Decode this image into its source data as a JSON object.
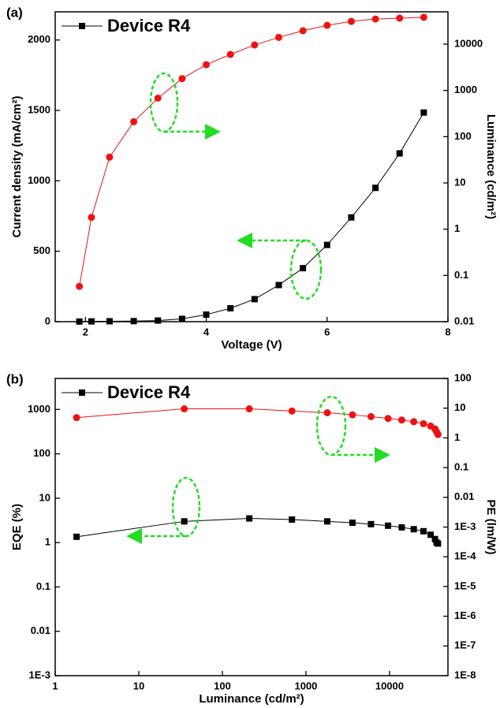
{
  "chart_data": [
    {
      "type": "line",
      "panel_label": "(a)",
      "xlabel": "Voltage (V)",
      "ylabel": "Current density (mA/cm²)",
      "y2label": "Luminance (cd/m²)",
      "x": [
        1.9,
        2.1,
        2.4,
        2.8,
        3.2,
        3.6,
        4.0,
        4.4,
        4.8,
        5.2,
        5.6,
        6.0,
        6.4,
        6.8,
        7.2,
        7.6
      ],
      "series": [
        {
          "name": "Device R4",
          "color": "#000000",
          "marker": "square",
          "values": [
            1,
            2,
            3,
            4,
            8,
            20,
            50,
            95,
            160,
            260,
            380,
            545,
            740,
            950,
            1195,
            1485
          ]
        },
        {
          "color": "#ee1111",
          "marker": "circle",
          "axis": "y2",
          "values": [
            0.058,
            1.8,
            36,
            210,
            680,
            1800,
            3600,
            6000,
            9600,
            14000,
            19500,
            25500,
            31000,
            35000,
            36500,
            38000
          ]
        }
      ],
      "xlim": [
        1.5,
        8
      ],
      "xticks": [
        2,
        4,
        6,
        8
      ],
      "ylim": [
        0,
        2200
      ],
      "yticks": [
        0,
        500,
        1000,
        1500,
        2000
      ],
      "y2lim": [
        0.01,
        50000
      ],
      "y2scale": "log",
      "y2ticks": [
        0.01,
        0.1,
        1,
        10,
        100,
        1000,
        10000
      ],
      "legend": "upper left"
    },
    {
      "type": "line",
      "panel_label": "(b)",
      "xlabel": "Luminance (cd/m²)",
      "ylabel": "EQE (%)",
      "y2label": "PE (lm/W)",
      "x": [
        1.8,
        35,
        210,
        680,
        1800,
        3600,
        6000,
        9600,
        14000,
        19500,
        25500,
        31000,
        35000,
        36500,
        38000
      ],
      "series": [
        {
          "name": "Device R4",
          "color": "#000000",
          "marker": "square",
          "values": [
            1.35,
            3.0,
            3.5,
            3.3,
            3.0,
            2.8,
            2.6,
            2.4,
            2.2,
            2.0,
            1.8,
            1.5,
            1.2,
            1.0,
            0.95
          ]
        },
        {
          "color": "#ee1111",
          "marker": "circle",
          "axis": "y2",
          "values": [
            4.8,
            9.5,
            9.5,
            8,
            7,
            6,
            5.2,
            4.5,
            4,
            3.5,
            3,
            2.5,
            2,
            1.6,
            1.3
          ]
        }
      ],
      "xlim": [
        1,
        50000
      ],
      "xscale": "log",
      "xticks": [
        1,
        10,
        100,
        1000,
        10000
      ],
      "ylim": [
        0.001,
        5000
      ],
      "yscale": "log",
      "yticks": [
        {
          "value": 0.001,
          "label": "1E-3"
        },
        0.01,
        0.1,
        1,
        10,
        100,
        1000
      ],
      "y2lim": [
        1e-08,
        100
      ],
      "y2scale": "log",
      "y2ticks": [
        {
          "value": 1e-08,
          "label": "1E-8"
        },
        {
          "value": 1e-07,
          "label": "1E-7"
        },
        {
          "value": 1e-06,
          "label": "1E-6"
        },
        {
          "value": 1e-05,
          "label": "1E-5"
        },
        {
          "value": 0.0001,
          "label": "1E-4"
        },
        {
          "value": 0.001,
          "label": "1E-3"
        },
        0.01,
        0.1,
        1,
        10,
        100
      ],
      "legend": "upper left"
    }
  ]
}
